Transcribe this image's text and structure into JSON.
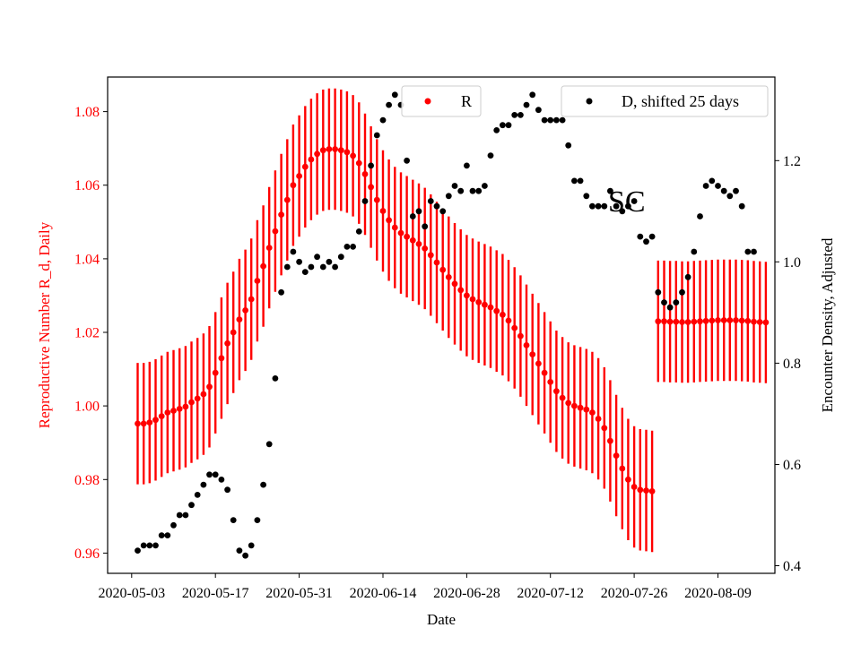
{
  "chart_data": {
    "type": "scatter",
    "title": "",
    "xlabel": "Date",
    "ylabel_left": "Reproductive Number R_d, Daily",
    "ylabel_right": "Encounter Density, Adjusted",
    "annotation": "SC",
    "x_start": "2020-05-04",
    "x_ticks": [
      "2020-05-03",
      "2020-05-17",
      "2020-05-31",
      "2020-06-14",
      "2020-06-28",
      "2020-07-12",
      "2020-07-26",
      "2020-08-09"
    ],
    "ylim_left": [
      0.9545,
      1.0894
    ],
    "ylim_right": [
      0.385,
      1.365
    ],
    "yticks_left": [
      "0.96",
      "0.98",
      "1.00",
      "1.02",
      "1.04",
      "1.06",
      "1.08"
    ],
    "yticks_right": [
      "0.4",
      "0.6",
      "0.8",
      "1.0",
      "1.2"
    ],
    "grid": false,
    "colors": {
      "R": "#ff0000",
      "D": "#000000",
      "left_axis": "#ff0000"
    },
    "legend": [
      {
        "label": "R",
        "color": "#ff0000",
        "placement": "upper-center"
      },
      {
        "label": "D, shifted 25 days",
        "color": "#000000",
        "placement": "upper-right"
      }
    ],
    "series": [
      {
        "name": "R",
        "axis": "left",
        "errorbar_halfwidth": 0.0165,
        "points": [
          [
            "2020-05-04",
            0.9952
          ],
          [
            "2020-05-05",
            0.9952
          ],
          [
            "2020-05-06",
            0.9955
          ],
          [
            "2020-05-07",
            0.9962
          ],
          [
            "2020-05-08",
            0.9972
          ],
          [
            "2020-05-09",
            0.9982
          ],
          [
            "2020-05-10",
            0.9987
          ],
          [
            "2020-05-11",
            0.9992
          ],
          [
            "2020-05-12",
            0.9998
          ],
          [
            "2020-05-13",
            1.001
          ],
          [
            "2020-05-14",
            1.002
          ],
          [
            "2020-05-15",
            1.0032
          ],
          [
            "2020-05-16",
            1.0052
          ],
          [
            "2020-05-17",
            1.009
          ],
          [
            "2020-05-18",
            1.013
          ],
          [
            "2020-05-19",
            1.017
          ],
          [
            "2020-05-20",
            1.02
          ],
          [
            "2020-05-21",
            1.0235
          ],
          [
            "2020-05-22",
            1.026
          ],
          [
            "2020-05-23",
            1.029
          ],
          [
            "2020-05-24",
            1.034
          ],
          [
            "2020-05-25",
            1.038
          ],
          [
            "2020-05-26",
            1.043
          ],
          [
            "2020-05-27",
            1.0475
          ],
          [
            "2020-05-28",
            1.052
          ],
          [
            "2020-05-29",
            1.056
          ],
          [
            "2020-05-30",
            1.06
          ],
          [
            "2020-05-31",
            1.0625
          ],
          [
            "2020-06-01",
            1.065
          ],
          [
            "2020-06-02",
            1.067
          ],
          [
            "2020-06-03",
            1.0685
          ],
          [
            "2020-06-04",
            1.0695
          ],
          [
            "2020-06-05",
            1.0698
          ],
          [
            "2020-06-06",
            1.0698
          ],
          [
            "2020-06-07",
            1.0695
          ],
          [
            "2020-06-08",
            1.069
          ],
          [
            "2020-06-09",
            1.068
          ],
          [
            "2020-06-10",
            1.066
          ],
          [
            "2020-06-11",
            1.063
          ],
          [
            "2020-06-12",
            1.0595
          ],
          [
            "2020-06-13",
            1.056
          ],
          [
            "2020-06-14",
            1.053
          ],
          [
            "2020-06-15",
            1.0505
          ],
          [
            "2020-06-16",
            1.0485
          ],
          [
            "2020-06-17",
            1.047
          ],
          [
            "2020-06-18",
            1.046
          ],
          [
            "2020-06-19",
            1.045
          ],
          [
            "2020-06-20",
            1.044
          ],
          [
            "2020-06-21",
            1.0428
          ],
          [
            "2020-06-22",
            1.041
          ],
          [
            "2020-06-23",
            1.039
          ],
          [
            "2020-06-24",
            1.037
          ],
          [
            "2020-06-25",
            1.035
          ],
          [
            "2020-06-26",
            1.0332
          ],
          [
            "2020-06-27",
            1.0315
          ],
          [
            "2020-06-28",
            1.03
          ],
          [
            "2020-06-29",
            1.029
          ],
          [
            "2020-06-30",
            1.0282
          ],
          [
            "2020-07-01",
            1.0275
          ],
          [
            "2020-07-02",
            1.0268
          ],
          [
            "2020-07-03",
            1.0258
          ],
          [
            "2020-07-04",
            1.0248
          ],
          [
            "2020-07-05",
            1.0232
          ],
          [
            "2020-07-06",
            1.0212
          ],
          [
            "2020-07-07",
            1.019
          ],
          [
            "2020-07-08",
            1.0165
          ],
          [
            "2020-07-09",
            1.014
          ],
          [
            "2020-07-10",
            1.0115
          ],
          [
            "2020-07-11",
            1.009
          ],
          [
            "2020-07-12",
            1.0065
          ],
          [
            "2020-07-13",
            1.004
          ],
          [
            "2020-07-14",
            1.0022
          ],
          [
            "2020-07-15",
            1.0008
          ],
          [
            "2020-07-16",
            1.0
          ],
          [
            "2020-07-17",
            0.9995
          ],
          [
            "2020-07-18",
            0.999
          ],
          [
            "2020-07-19",
            0.9982
          ],
          [
            "2020-07-20",
            0.9965
          ],
          [
            "2020-07-21",
            0.994
          ],
          [
            "2020-07-22",
            0.9905
          ],
          [
            "2020-07-23",
            0.9865
          ],
          [
            "2020-07-24",
            0.983
          ],
          [
            "2020-07-25",
            0.98
          ],
          [
            "2020-07-26",
            0.978
          ],
          [
            "2020-07-27",
            0.9772
          ],
          [
            "2020-07-28",
            0.977
          ],
          [
            "2020-07-29",
            0.9768
          ],
          [
            "2020-07-30",
            1.023
          ],
          [
            "2020-07-31",
            1.023
          ],
          [
            "2020-08-01",
            1.0229
          ],
          [
            "2020-08-02",
            1.0229
          ],
          [
            "2020-08-03",
            1.0228
          ],
          [
            "2020-08-04",
            1.0228
          ],
          [
            "2020-08-05",
            1.0229
          ],
          [
            "2020-08-06",
            1.023
          ],
          [
            "2020-08-07",
            1.0231
          ],
          [
            "2020-08-08",
            1.0232
          ],
          [
            "2020-08-09",
            1.0233
          ],
          [
            "2020-08-10",
            1.0233
          ],
          [
            "2020-08-11",
            1.0233
          ],
          [
            "2020-08-12",
            1.0233
          ],
          [
            "2020-08-13",
            1.0232
          ],
          [
            "2020-08-14",
            1.0231
          ],
          [
            "2020-08-15",
            1.0229
          ],
          [
            "2020-08-16",
            1.0228
          ],
          [
            "2020-08-17",
            1.0227
          ]
        ]
      },
      {
        "name": "D, shifted 25 days",
        "axis": "right",
        "points": [
          [
            "2020-05-04",
            0.43
          ],
          [
            "2020-05-05",
            0.44
          ],
          [
            "2020-05-06",
            0.44
          ],
          [
            "2020-05-07",
            0.44
          ],
          [
            "2020-05-08",
            0.46
          ],
          [
            "2020-05-09",
            0.46
          ],
          [
            "2020-05-10",
            0.48
          ],
          [
            "2020-05-11",
            0.5
          ],
          [
            "2020-05-12",
            0.5
          ],
          [
            "2020-05-13",
            0.52
          ],
          [
            "2020-05-14",
            0.54
          ],
          [
            "2020-05-15",
            0.56
          ],
          [
            "2020-05-16",
            0.58
          ],
          [
            "2020-05-17",
            0.58
          ],
          [
            "2020-05-18",
            0.57
          ],
          [
            "2020-05-19",
            0.55
          ],
          [
            "2020-05-20",
            0.49
          ],
          [
            "2020-05-21",
            0.43
          ],
          [
            "2020-05-22",
            0.42
          ],
          [
            "2020-05-23",
            0.44
          ],
          [
            "2020-05-24",
            0.49
          ],
          [
            "2020-05-25",
            0.56
          ],
          [
            "2020-05-26",
            0.64
          ],
          [
            "2020-05-27",
            0.77
          ],
          [
            "2020-05-28",
            0.94
          ],
          [
            "2020-05-29",
            0.99
          ],
          [
            "2020-05-30",
            1.02
          ],
          [
            "2020-05-31",
            1.0
          ],
          [
            "2020-06-01",
            0.98
          ],
          [
            "2020-06-02",
            0.99
          ],
          [
            "2020-06-03",
            1.01
          ],
          [
            "2020-06-04",
            0.99
          ],
          [
            "2020-06-05",
            1.0
          ],
          [
            "2020-06-06",
            0.99
          ],
          [
            "2020-06-07",
            1.01
          ],
          [
            "2020-06-08",
            1.03
          ],
          [
            "2020-06-09",
            1.03
          ],
          [
            "2020-06-10",
            1.06
          ],
          [
            "2020-06-11",
            1.12
          ],
          [
            "2020-06-12",
            1.19
          ],
          [
            "2020-06-13",
            1.25
          ],
          [
            "2020-06-14",
            1.28
          ],
          [
            "2020-06-15",
            1.31
          ],
          [
            "2020-06-16",
            1.33
          ],
          [
            "2020-06-17",
            1.31
          ],
          [
            "2020-06-18",
            1.2
          ],
          [
            "2020-06-19",
            1.09
          ],
          [
            "2020-06-20",
            1.1
          ],
          [
            "2020-06-21",
            1.07
          ],
          [
            "2020-06-22",
            1.12
          ],
          [
            "2020-06-23",
            1.11
          ],
          [
            "2020-06-24",
            1.1
          ],
          [
            "2020-06-25",
            1.13
          ],
          [
            "2020-06-26",
            1.15
          ],
          [
            "2020-06-27",
            1.14
          ],
          [
            "2020-06-28",
            1.19
          ],
          [
            "2020-06-29",
            1.14
          ],
          [
            "2020-06-30",
            1.14
          ],
          [
            "2020-07-01",
            1.15
          ],
          [
            "2020-07-02",
            1.21
          ],
          [
            "2020-07-03",
            1.26
          ],
          [
            "2020-07-04",
            1.27
          ],
          [
            "2020-07-05",
            1.27
          ],
          [
            "2020-07-06",
            1.29
          ],
          [
            "2020-07-07",
            1.29
          ],
          [
            "2020-07-08",
            1.31
          ],
          [
            "2020-07-09",
            1.33
          ],
          [
            "2020-07-10",
            1.3
          ],
          [
            "2020-07-11",
            1.28
          ],
          [
            "2020-07-12",
            1.28
          ],
          [
            "2020-07-13",
            1.28
          ],
          [
            "2020-07-14",
            1.28
          ],
          [
            "2020-07-15",
            1.23
          ],
          [
            "2020-07-16",
            1.16
          ],
          [
            "2020-07-17",
            1.16
          ],
          [
            "2020-07-18",
            1.13
          ],
          [
            "2020-07-19",
            1.11
          ],
          [
            "2020-07-20",
            1.11
          ],
          [
            "2020-07-21",
            1.11
          ],
          [
            "2020-07-22",
            1.14
          ],
          [
            "2020-07-23",
            1.11
          ],
          [
            "2020-07-24",
            1.1
          ],
          [
            "2020-07-25",
            1.11
          ],
          [
            "2020-07-26",
            1.12
          ],
          [
            "2020-07-27",
            1.05
          ],
          [
            "2020-07-28",
            1.04
          ],
          [
            "2020-07-29",
            1.05
          ],
          [
            "2020-07-30",
            0.94
          ],
          [
            "2020-07-31",
            0.92
          ],
          [
            "2020-08-01",
            0.91
          ],
          [
            "2020-08-02",
            0.92
          ],
          [
            "2020-08-03",
            0.94
          ],
          [
            "2020-08-04",
            0.97
          ],
          [
            "2020-08-05",
            1.02
          ],
          [
            "2020-08-06",
            1.09
          ],
          [
            "2020-08-07",
            1.15
          ],
          [
            "2020-08-08",
            1.16
          ],
          [
            "2020-08-09",
            1.15
          ],
          [
            "2020-08-10",
            1.14
          ],
          [
            "2020-08-11",
            1.13
          ],
          [
            "2020-08-12",
            1.14
          ],
          [
            "2020-08-13",
            1.11
          ],
          [
            "2020-08-14",
            1.02
          ],
          [
            "2020-08-15",
            1.02
          ]
        ]
      }
    ]
  }
}
